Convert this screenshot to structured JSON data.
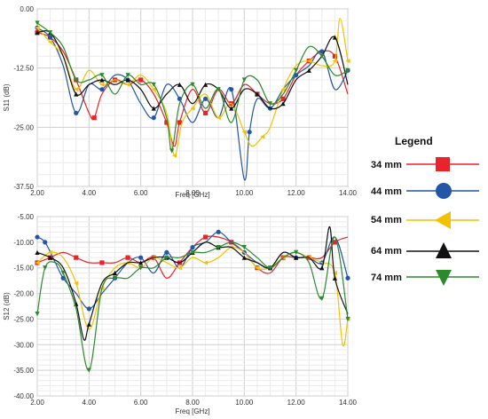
{
  "legend": {
    "title": "Legend",
    "entries": [
      {
        "label": "34 mm",
        "color": "#e8242a",
        "marker": "square"
      },
      {
        "label": "44 mm",
        "color": "#2356a5",
        "marker": "circle"
      },
      {
        "label": "54 mm",
        "color": "#f2c200",
        "marker": "triangle-left"
      },
      {
        "label": "64 mm",
        "color": "#111111",
        "marker": "triangle-up"
      },
      {
        "label": "74 mm",
        "color": "#2b8a2b",
        "marker": "triangle-down"
      }
    ]
  },
  "chart_data": [
    {
      "type": "line",
      "xlabel": "Freq [GHz]",
      "ylabel": "S11 (dB)",
      "xlim": [
        2.0,
        14.0
      ],
      "ylim": [
        -37.5,
        0.0
      ],
      "xticks": [
        "2.00",
        "4.00",
        "6.00",
        "8.00",
        "10.00",
        "12.00",
        "14.00"
      ],
      "yticks": [
        "0.00",
        "-12.50",
        "-25.00",
        "-37.50"
      ],
      "grid": true,
      "series": [
        {
          "name": "34 mm",
          "color": "#e8242a",
          "x": [
            2.0,
            2.5,
            3.0,
            3.5,
            4.0,
            4.2,
            4.5,
            5.0,
            5.5,
            6.0,
            6.5,
            7.0,
            7.3,
            7.5,
            8.0,
            8.5,
            9.0,
            9.5,
            10.0,
            10.5,
            11.0,
            11.5,
            12.0,
            12.5,
            13.0,
            13.5,
            14.0
          ],
          "values": [
            -5,
            -6,
            -9,
            -15,
            -22,
            -23,
            -18,
            -15,
            -16,
            -15,
            -18,
            -24,
            -29,
            -24,
            -17,
            -22,
            -17,
            -20,
            -16,
            -18,
            -20,
            -19,
            -14,
            -11,
            -9,
            -10,
            -18
          ]
        },
        {
          "name": "44 mm",
          "color": "#2356a5",
          "x": [
            2.0,
            2.5,
            3.0,
            3.5,
            4.0,
            4.5,
            5.0,
            5.5,
            6.0,
            6.5,
            7.0,
            7.5,
            8.0,
            8.5,
            9.0,
            9.5,
            10.0,
            10.2,
            10.5,
            11.0,
            11.5,
            12.0,
            12.5,
            13.0,
            13.5,
            14.0
          ],
          "values": [
            -4,
            -6,
            -12,
            -22,
            -16,
            -17,
            -14,
            -15,
            -20,
            -23,
            -16,
            -19,
            -24,
            -19,
            -23,
            -17,
            -36,
            -26,
            -19,
            -21,
            -17,
            -14,
            -12,
            -9,
            -17,
            -13
          ]
        },
        {
          "name": "54 mm",
          "color": "#f2c200",
          "x": [
            2.0,
            2.5,
            3.0,
            3.5,
            4.0,
            4.5,
            5.0,
            5.5,
            6.0,
            6.5,
            7.0,
            7.3,
            7.6,
            8.0,
            8.5,
            9.0,
            9.5,
            10.0,
            10.3,
            10.7,
            11.0,
            11.5,
            12.0,
            12.5,
            13.0,
            13.5,
            13.7,
            14.0
          ],
          "values": [
            -4,
            -7,
            -10,
            -17,
            -13,
            -16,
            -15,
            -16,
            -14,
            -17,
            -22,
            -31,
            -24,
            -21,
            -18,
            -23,
            -20,
            -26,
            -29,
            -27,
            -25,
            -17,
            -12,
            -11,
            -12,
            -11,
            -2,
            -11
          ]
        },
        {
          "name": "64 mm",
          "color": "#111111",
          "x": [
            2.0,
            2.5,
            3.0,
            3.5,
            4.0,
            4.5,
            5.0,
            5.5,
            6.0,
            6.5,
            7.0,
            7.5,
            8.0,
            8.5,
            9.0,
            9.5,
            10.0,
            10.5,
            11.0,
            11.5,
            12.0,
            12.5,
            13.0,
            13.5,
            14.0
          ],
          "values": [
            -5,
            -5,
            -10,
            -18,
            -16,
            -15,
            -16,
            -15,
            -17,
            -21,
            -18,
            -16,
            -20,
            -16,
            -17,
            -21,
            -17,
            -18,
            -21,
            -20,
            -15,
            -13,
            -10,
            -6,
            -16
          ]
        },
        {
          "name": "74 mm",
          "color": "#2b8a2b",
          "x": [
            2.0,
            2.5,
            3.0,
            3.5,
            4.0,
            4.5,
            5.0,
            5.5,
            6.0,
            6.5,
            7.0,
            7.2,
            7.5,
            8.0,
            8.5,
            9.0,
            9.5,
            10.0,
            10.5,
            11.0,
            11.5,
            12.0,
            12.5,
            13.0,
            13.5,
            14.0
          ],
          "values": [
            -3,
            -5,
            -8,
            -15,
            -15,
            -14,
            -18,
            -14,
            -16,
            -16,
            -23,
            -30,
            -20,
            -16,
            -21,
            -17,
            -24,
            -15,
            -15,
            -20,
            -18,
            -13,
            -8,
            -10,
            -14,
            -13
          ]
        }
      ]
    },
    {
      "type": "line",
      "xlabel": "Freq [GHz]",
      "ylabel": "S12 (dB)",
      "xlim": [
        2.0,
        14.0
      ],
      "ylim": [
        -40.0,
        -5.0
      ],
      "xticks": [
        "2.00",
        "4.00",
        "6.00",
        "8.00",
        "10.00",
        "12.00",
        "14.00"
      ],
      "yticks": [
        "-5.00",
        "-10.00",
        "-15.00",
        "-20.00",
        "-25.00",
        "-30.00",
        "-35.00",
        "-40.00"
      ],
      "grid": true,
      "series": [
        {
          "name": "34 mm",
          "color": "#e8242a",
          "x": [
            2.0,
            2.5,
            3.0,
            3.5,
            4.0,
            4.5,
            5.0,
            5.5,
            6.0,
            6.5,
            7.0,
            7.5,
            8.0,
            8.5,
            9.0,
            9.5,
            10.0,
            10.5,
            11.0,
            11.5,
            12.0,
            12.5,
            13.0,
            13.5,
            14.0
          ],
          "values": [
            -14,
            -13,
            -12,
            -13,
            -14,
            -14,
            -14,
            -13,
            -14,
            -13,
            -17,
            -14,
            -11,
            -9,
            -9,
            -10,
            -12,
            -15,
            -16,
            -13,
            -13,
            -13,
            -13,
            -10,
            -9
          ]
        },
        {
          "name": "44 mm",
          "color": "#2356a5",
          "x": [
            2.0,
            2.3,
            2.7,
            3.0,
            3.5,
            4.0,
            4.5,
            5.0,
            5.5,
            6.0,
            6.5,
            7.0,
            7.5,
            8.0,
            8.5,
            9.0,
            9.5,
            10.0,
            10.5,
            11.0,
            11.5,
            12.0,
            12.5,
            13.0,
            13.5,
            14.0
          ],
          "values": [
            -9,
            -10,
            -14,
            -17,
            -20,
            -23,
            -20,
            -17,
            -14,
            -13,
            -16,
            -12,
            -15,
            -11,
            -10,
            -8,
            -10,
            -12,
            -14,
            -15,
            -12,
            -13,
            -13,
            -14,
            -9,
            -17
          ]
        },
        {
          "name": "54 mm",
          "color": "#f2c200",
          "x": [
            2.0,
            2.5,
            3.0,
            3.5,
            4.0,
            4.5,
            5.0,
            5.5,
            6.0,
            6.5,
            7.0,
            7.5,
            8.0,
            8.5,
            9.0,
            9.5,
            10.0,
            10.5,
            11.0,
            11.5,
            12.0,
            12.5,
            13.0,
            13.5,
            13.8,
            14.0
          ],
          "values": [
            -14,
            -12,
            -13,
            -18,
            -27,
            -19,
            -15,
            -14,
            -15,
            -13,
            -14,
            -15,
            -13,
            -14,
            -13,
            -11,
            -12,
            -15,
            -15,
            -13,
            -12,
            -13,
            -14,
            -16,
            -30,
            -25
          ]
        },
        {
          "name": "64 mm",
          "color": "#111111",
          "x": [
            2.0,
            2.5,
            3.0,
            3.5,
            3.8,
            4.0,
            4.5,
            5.0,
            5.5,
            6.0,
            6.5,
            7.0,
            7.5,
            8.0,
            8.5,
            9.0,
            9.5,
            10.0,
            10.5,
            11.0,
            11.5,
            12.0,
            12.5,
            13.0,
            13.3,
            13.5,
            14.0
          ],
          "values": [
            -12,
            -13,
            -15,
            -22,
            -29,
            -26,
            -18,
            -16,
            -14,
            -14,
            -13,
            -13,
            -14,
            -12,
            -10,
            -11,
            -11,
            -13,
            -14,
            -15,
            -12,
            -13,
            -13,
            -15,
            -7,
            -17,
            -24
          ]
        },
        {
          "name": "74 mm",
          "color": "#2b8a2b",
          "x": [
            2.0,
            2.3,
            2.7,
            3.0,
            3.5,
            4.0,
            4.5,
            5.0,
            5.5,
            6.0,
            6.5,
            7.0,
            7.5,
            8.0,
            8.5,
            9.0,
            9.5,
            10.0,
            10.5,
            11.0,
            11.5,
            12.0,
            12.5,
            13.0,
            13.5,
            14.0
          ],
          "values": [
            -24,
            -15,
            -14,
            -16,
            -23,
            -35,
            -19,
            -17,
            -17,
            -15,
            -15,
            -13,
            -13,
            -12,
            -12,
            -11,
            -10,
            -11,
            -13,
            -15,
            -13,
            -12,
            -14,
            -21,
            -9,
            -25
          ]
        }
      ]
    }
  ]
}
